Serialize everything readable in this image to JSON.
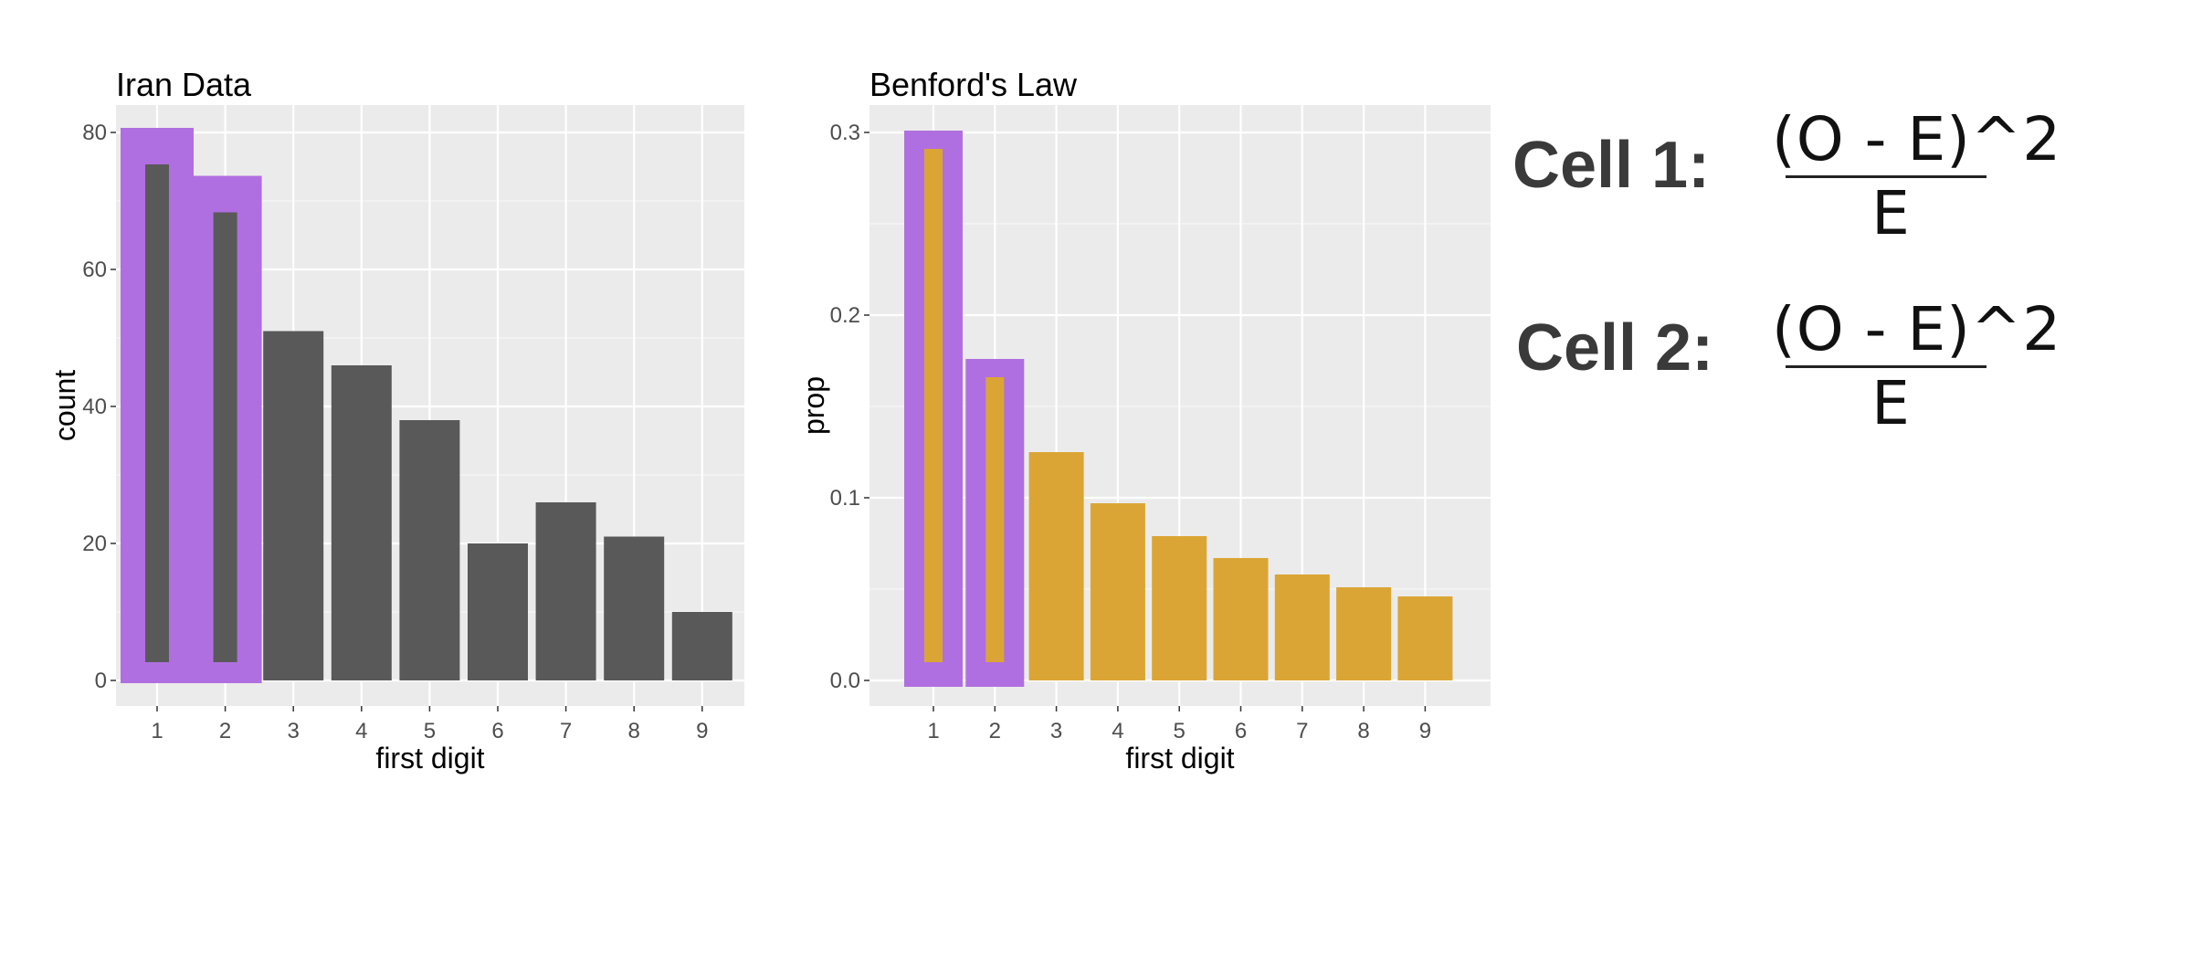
{
  "chart_data": [
    {
      "type": "bar",
      "title": "Iran Data",
      "xlabel": "first digit",
      "ylabel": "count",
      "categories": [
        "1",
        "2",
        "3",
        "4",
        "5",
        "6",
        "7",
        "8",
        "9"
      ],
      "values": [
        78,
        71,
        51,
        46,
        38,
        20,
        26,
        21,
        10
      ],
      "yticks": [
        0,
        20,
        40,
        60,
        80
      ],
      "ylim": [
        0,
        80
      ],
      "highlighted": [
        "1",
        "2"
      ],
      "bar_color": "#595959",
      "highlight_color": "#b06fe0",
      "panel_color": "#ebebeb",
      "grid": true
    },
    {
      "type": "bar",
      "title": "Benford's Law",
      "xlabel": "first digit",
      "ylabel": "prop",
      "categories": [
        "1",
        "2",
        "3",
        "4",
        "5",
        "6",
        "7",
        "8",
        "9"
      ],
      "values": [
        0.301,
        0.176,
        0.125,
        0.097,
        0.079,
        0.067,
        0.058,
        0.051,
        0.046
      ],
      "yticks": [
        "0.0",
        "0.1",
        "0.2",
        "0.3"
      ],
      "ylim": [
        0,
        0.3
      ],
      "highlighted": [
        "1",
        "2"
      ],
      "bar_color": "#dba535",
      "highlight_color": "#b06fe0",
      "panel_color": "#ebebeb",
      "grid": true
    }
  ],
  "formulas": [
    {
      "label": "Cell 1:",
      "numerator": "(O - E)^2",
      "denominator": "E"
    },
    {
      "label": "Cell 2:",
      "numerator": "(O - E)^2",
      "denominator": "E"
    }
  ]
}
